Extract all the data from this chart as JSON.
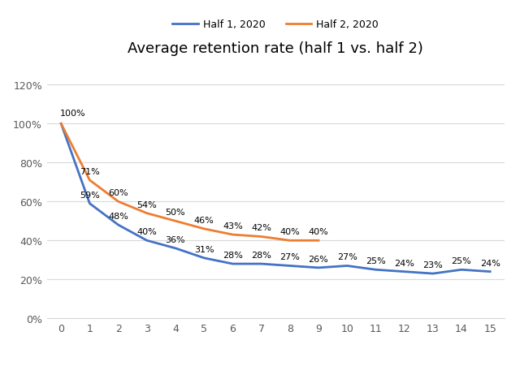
{
  "title": "Average retention rate (half 1 vs. half 2)",
  "x": [
    0,
    1,
    2,
    3,
    4,
    5,
    6,
    7,
    8,
    9,
    10,
    11,
    12,
    13,
    14,
    15
  ],
  "half1": [
    1.0,
    0.59,
    0.48,
    0.4,
    0.36,
    0.31,
    0.28,
    0.28,
    0.27,
    0.26,
    0.27,
    0.25,
    0.24,
    0.23,
    0.25,
    0.24
  ],
  "half2": [
    1.0,
    0.71,
    0.6,
    0.54,
    0.5,
    0.46,
    0.43,
    0.42,
    0.4,
    0.4,
    null,
    null,
    null,
    null,
    null,
    null
  ],
  "half1_labels": [
    "100%",
    "59%",
    "48%",
    "40%",
    "36%",
    "31%",
    "28%",
    "28%",
    "27%",
    "26%",
    "27%",
    "25%",
    "24%",
    "23%",
    "25%",
    "24%"
  ],
  "half2_labels": [
    "100%",
    "71%",
    "60%",
    "54%",
    "50%",
    "46%",
    "43%",
    "42%",
    "40%",
    "40%",
    null,
    null,
    null,
    null,
    null,
    null
  ],
  "half1_color": "#4472c4",
  "half2_color": "#ed7d31",
  "legend_labels": [
    "Half 1, 2020",
    "Half 2, 2020"
  ],
  "ylim": [
    0,
    1.3
  ],
  "yticks": [
    0,
    0.2,
    0.4,
    0.6,
    0.8,
    1.0,
    1.2
  ],
  "ytick_labels": [
    "0%",
    "20%",
    "40%",
    "60%",
    "80%",
    "100%",
    "120%"
  ],
  "background_color": "#ffffff",
  "grid_color": "#d9d9d9"
}
